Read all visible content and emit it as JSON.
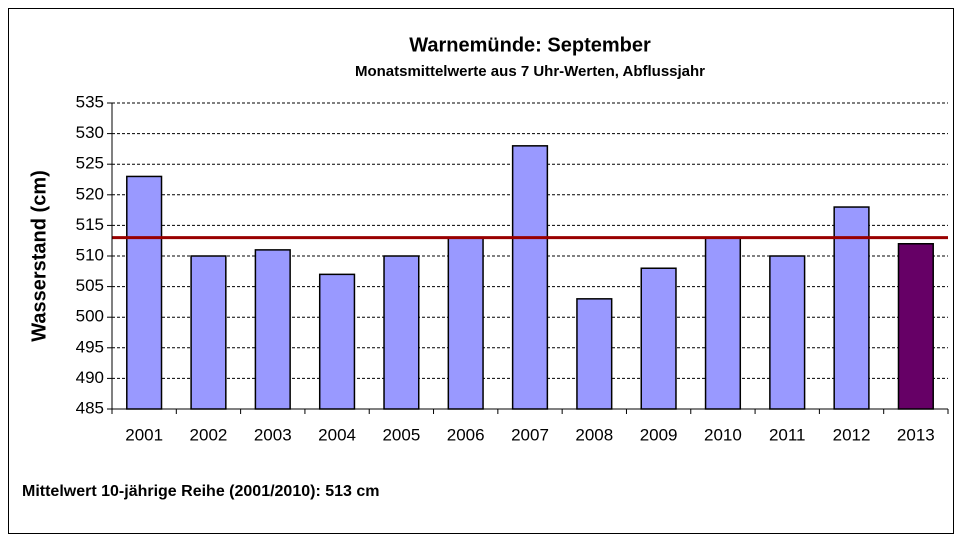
{
  "chart_data": {
    "type": "bar",
    "title": "Warnemünde: September",
    "subtitle": "Monatsmittelwerte aus 7 Uhr-Werten, Abflussjahr",
    "y_label": "Wasserstand (cm)",
    "categories": [
      "2001",
      "2002",
      "2003",
      "2004",
      "2005",
      "2006",
      "2007",
      "2008",
      "2009",
      "2010",
      "2011",
      "2012",
      "2013"
    ],
    "values": [
      523,
      510,
      511,
      507,
      510,
      513,
      528,
      503,
      508,
      513,
      510,
      518,
      512
    ],
    "colors": [
      "#9999ff",
      "#9999ff",
      "#9999ff",
      "#9999ff",
      "#9999ff",
      "#9999ff",
      "#9999ff",
      "#9999ff",
      "#9999ff",
      "#9999ff",
      "#9999ff",
      "#9999ff",
      "#660066"
    ],
    "reference_line": {
      "value": 513,
      "color": "#990000"
    },
    "annotation": "Mittelwert 10-jährige Reihe (2001/2010): 513 cm",
    "annotation_color": "#990000",
    "ylim": [
      485,
      535
    ],
    "yticks": [
      485,
      490,
      495,
      500,
      505,
      510,
      515,
      520,
      525,
      530,
      535
    ],
    "grid": true
  }
}
